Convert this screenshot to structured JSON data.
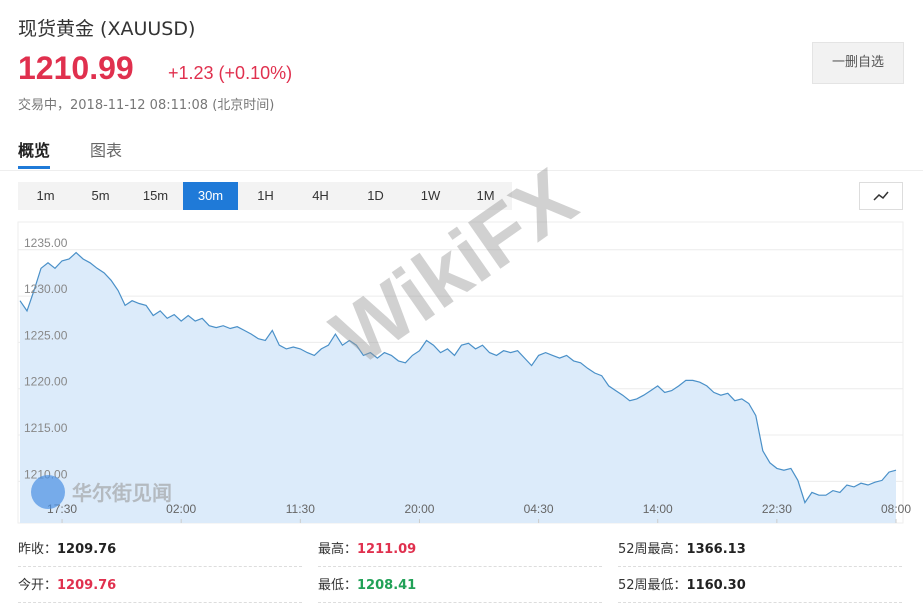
{
  "header": {
    "title": "现货黄金  (XAUUSD)",
    "price": "1210.99",
    "change": "+1.23 (+0.10%)",
    "status": "交易中，2018-11-12 08:11:08 (北京时间)",
    "button": "一删自选"
  },
  "tabs": [
    "概览",
    "图表"
  ],
  "periods": [
    "1m",
    "5m",
    "15m",
    "30m",
    "1H",
    "4H",
    "1D",
    "1W",
    "1M"
  ],
  "active_period": "30m",
  "watermarks": [
    "WikiFX",
    "华尔街见闻"
  ],
  "chart_data": {
    "type": "line",
    "color": "#4a90c8",
    "fill": "#dcebfa",
    "grid": true,
    "xlim": [
      0,
      125
    ],
    "xticks": [
      {
        "value": 6,
        "label": "17:30"
      },
      {
        "value": 23,
        "label": "02:00"
      },
      {
        "value": 40,
        "label": "11:30"
      },
      {
        "value": 57,
        "label": "20:00"
      },
      {
        "value": 74,
        "label": "04:30"
      },
      {
        "value": 91,
        "label": "14:00"
      },
      {
        "value": 108,
        "label": "22:30"
      },
      {
        "value": 125,
        "label": "08:00"
      }
    ],
    "ylim": [
      1205.5,
      1238
    ],
    "yticks": [
      {
        "value": 1210,
        "label": "1210.00"
      },
      {
        "value": 1215,
        "label": "1215.00"
      },
      {
        "value": 1220,
        "label": "1220.00"
      },
      {
        "value": 1225,
        "label": "1225.00"
      },
      {
        "value": 1230,
        "label": "1230.00"
      },
      {
        "value": 1235,
        "label": "1235.00"
      }
    ],
    "values": [
      1229.5,
      1228.4,
      1230.6,
      1233,
      1233.6,
      1233,
      1233.8,
      1234,
      1234.7,
      1234,
      1233.6,
      1233,
      1232.5,
      1231.7,
      1230.6,
      1229,
      1229.5,
      1229.2,
      1229,
      1227.9,
      1228.4,
      1227.6,
      1228,
      1227.3,
      1227.9,
      1227.3,
      1227.6,
      1226.8,
      1226.6,
      1226.8,
      1226.5,
      1226.7,
      1226.3,
      1225.9,
      1225.4,
      1225.2,
      1226.3,
      1224.7,
      1224.3,
      1224.5,
      1224.3,
      1223.9,
      1223.6,
      1224.3,
      1224.7,
      1225.9,
      1224.7,
      1225.2,
      1224.7,
      1223.6,
      1223.9,
      1223.3,
      1223.9,
      1223.6,
      1223,
      1222.8,
      1223.6,
      1224.1,
      1225.2,
      1224.7,
      1223.9,
      1224.3,
      1223.6,
      1224.7,
      1224.9,
      1224.3,
      1224.7,
      1223.9,
      1223.6,
      1224.1,
      1223.9,
      1224.1,
      1223.3,
      1222.5,
      1223.6,
      1223.9,
      1223.6,
      1223.3,
      1223.6,
      1223,
      1222.8,
      1222.2,
      1221.7,
      1221.4,
      1220.3,
      1219.8,
      1219.3,
      1218.7,
      1218.9,
      1219.3,
      1219.8,
      1220.3,
      1219.6,
      1219.8,
      1220.3,
      1220.9,
      1220.9,
      1220.7,
      1220.3,
      1219.6,
      1219.3,
      1219.5,
      1218.7,
      1218.9,
      1218.4,
      1217.1,
      1213.3,
      1212,
      1211.4,
      1211.2,
      1211.4,
      1210.1,
      1207.7,
      1208.8,
      1208.5,
      1208.5,
      1209,
      1208.8,
      1209.6,
      1209.4,
      1209.8,
      1209.6,
      1209.9,
      1210.1,
      1211,
      1211.2
    ]
  },
  "stats": [
    [
      {
        "label": "昨收：",
        "value": "1209.76",
        "color": "#222222"
      },
      {
        "label": "最高：",
        "value": "1211.09",
        "color": "#e0304e"
      },
      {
        "label": "52周最高：",
        "value": "1366.13",
        "color": "#222222"
      }
    ],
    [
      {
        "label": "今开：",
        "value": "1209.76",
        "color": "#e0304e"
      },
      {
        "label": "最低：",
        "value": "1208.41",
        "color": "#21a157"
      },
      {
        "label": "52周最低：",
        "value": "1160.30",
        "color": "#222222"
      }
    ]
  ]
}
